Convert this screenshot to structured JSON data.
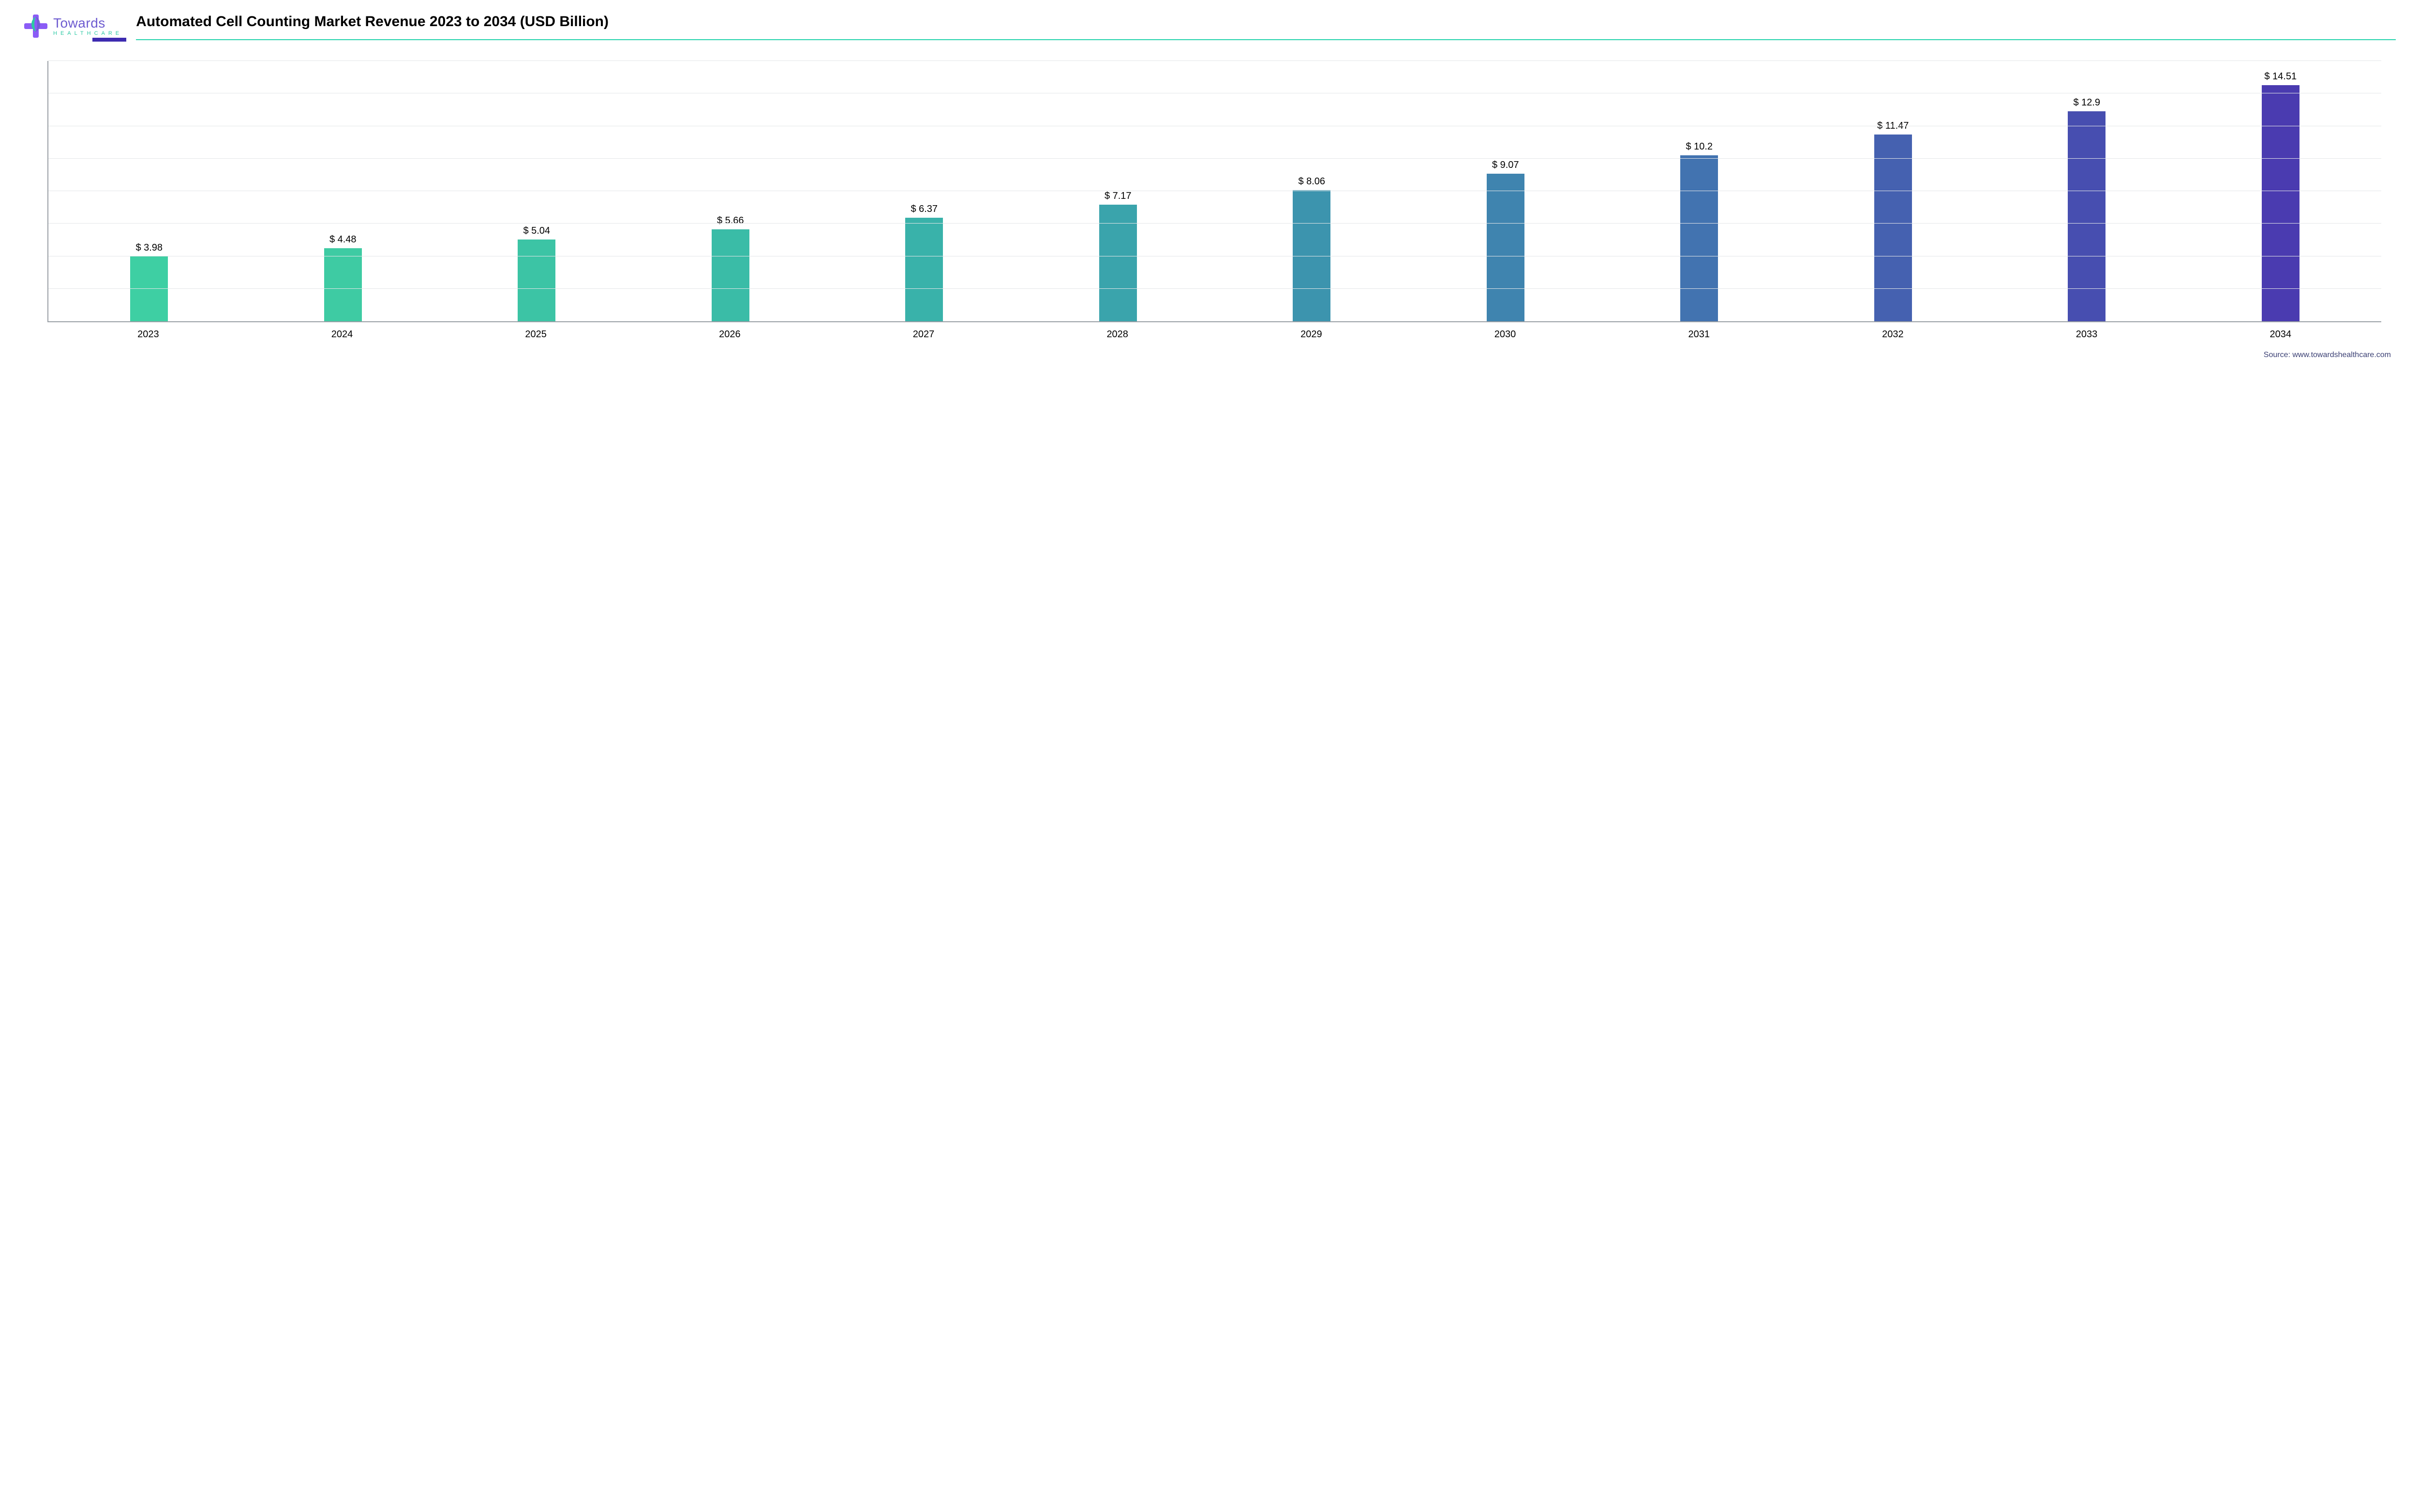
{
  "logo": {
    "brand": "Towards",
    "sub": "HEALTHCARE",
    "cross_color": "#8b5cf6",
    "leaf_color_a": "#2dc9a4",
    "leaf_color_b": "#6d5bd0"
  },
  "title": "Automated Cell Counting Market Revenue 2023 to 2034 (USD Billion)",
  "title_accent_color": "#3d2bb0",
  "title_line_color": "#27d3ad",
  "chart": {
    "type": "bar",
    "categories": [
      "2023",
      "2024",
      "2025",
      "2026",
      "2027",
      "2028",
      "2029",
      "2030",
      "2031",
      "2032",
      "2033",
      "2034"
    ],
    "values": [
      3.98,
      4.48,
      5.04,
      5.66,
      6.37,
      7.17,
      8.06,
      9.07,
      10.2,
      11.47,
      12.9,
      14.51
    ],
    "value_labels": [
      "$ 3.98",
      "$ 4.48",
      "$ 5.04",
      "$ 5.66",
      "$ 6.37",
      "$ 7.17",
      "$ 8.06",
      "$ 9.07",
      "$ 10.2",
      "$ 11.47",
      "$ 12.9",
      "$ 14.51"
    ],
    "bar_colors": [
      "#3ecfa3",
      "#3ecba3",
      "#3cc4a5",
      "#3abca7",
      "#39b2aa",
      "#3aa4ac",
      "#3c94ae",
      "#3f84af",
      "#4273b0",
      "#4561b0",
      "#474eb0",
      "#4a3bb0"
    ],
    "y_max": 16,
    "grid_lines": 8,
    "grid_color": "#e3e6e8",
    "axis_color": "#9aa0a6",
    "background_color": "#ffffff",
    "label_fontsize": 20,
    "xlabel_fontsize": 20,
    "bar_width_pct": 62
  },
  "source": "Source: www.towardshealthcare.com",
  "source_color": "#3a3f73"
}
